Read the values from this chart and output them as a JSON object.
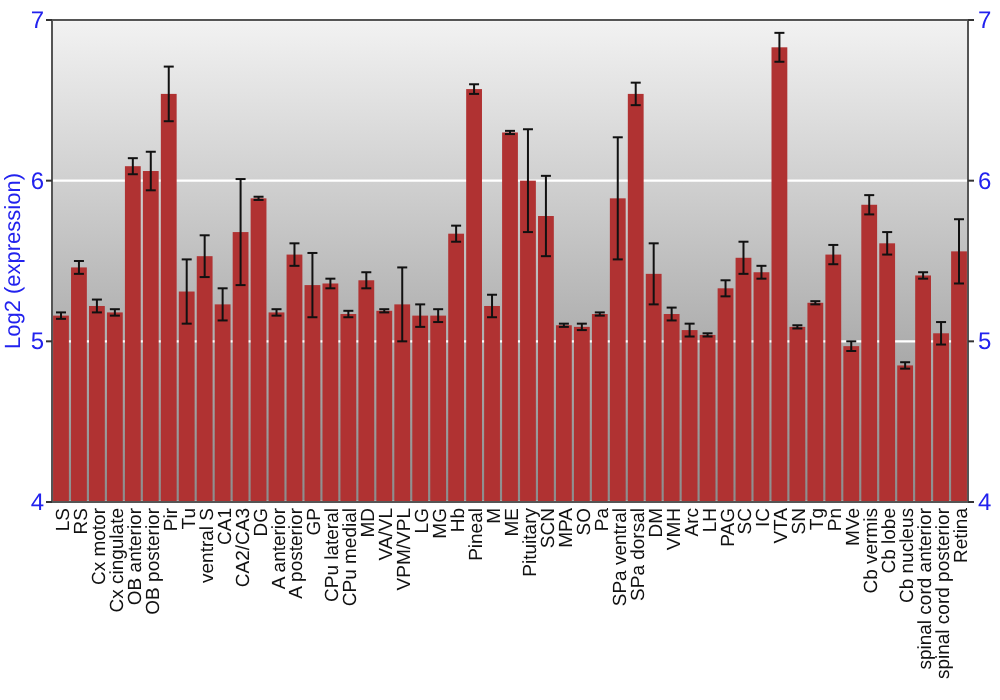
{
  "chart_data": {
    "type": "bar",
    "ylabel": "Log2 (expression)",
    "categories": [
      "LS",
      "RS",
      "Cx motor",
      "Cx cingulate",
      "OB anterior",
      "OB posterior",
      "Pir",
      "Tu",
      "ventral S",
      "CA1",
      "CA2/CA3",
      "DG",
      "A anterior",
      "A posterior",
      "GP",
      "CPu lateral",
      "CPu medial",
      "MD",
      "VA/VL",
      "VPM/VPL",
      "LG",
      "MG",
      "Hb",
      "Pineal",
      "M",
      "ME",
      "Pituitary",
      "SCN",
      "MPA",
      "SO",
      "Pa",
      "SPa ventral",
      "SPa dorsal",
      "DM",
      "VMH",
      "Arc",
      "LH",
      "PAG",
      "SC",
      "IC",
      "VTA",
      "SN",
      "Tg",
      "Pn",
      "MVe",
      "Cb vermis",
      "Cb lobe",
      "Cb nucleus",
      "spinal cord anterior",
      "spinal cord posterior",
      "Retina"
    ],
    "values": [
      5.16,
      5.46,
      5.22,
      5.18,
      6.09,
      6.06,
      6.54,
      5.31,
      5.53,
      5.23,
      5.68,
      5.89,
      5.18,
      5.54,
      5.35,
      5.36,
      5.17,
      5.38,
      5.19,
      5.23,
      5.16,
      5.16,
      5.67,
      6.57,
      5.22,
      6.3,
      6.0,
      5.78,
      5.1,
      5.09,
      5.17,
      5.89,
      6.54,
      5.42,
      5.17,
      5.07,
      5.04,
      5.33,
      5.52,
      5.43,
      6.83,
      5.09,
      5.24,
      5.54,
      4.97,
      5.85,
      5.61,
      4.85,
      5.41,
      5.05,
      5.56
    ],
    "errors": [
      0.02,
      0.04,
      0.04,
      0.02,
      0.05,
      0.12,
      0.17,
      0.2,
      0.13,
      0.1,
      0.33,
      0.01,
      0.02,
      0.07,
      0.2,
      0.03,
      0.02,
      0.05,
      0.01,
      0.23,
      0.07,
      0.04,
      0.05,
      0.03,
      0.07,
      0.01,
      0.32,
      0.25,
      0.01,
      0.02,
      0.01,
      0.38,
      0.07,
      0.19,
      0.04,
      0.04,
      0.01,
      0.05,
      0.1,
      0.04,
      0.09,
      0.01,
      0.01,
      0.06,
      0.03,
      0.06,
      0.07,
      0.02,
      0.02,
      0.07,
      0.2
    ],
    "color": "#b03232",
    "ylim": [
      4,
      7
    ],
    "yticks": [
      4,
      5,
      6,
      7
    ],
    "y2lim": [
      4,
      7
    ],
    "y2ticks": [
      4,
      5,
      6,
      7
    ],
    "grid": "y"
  }
}
